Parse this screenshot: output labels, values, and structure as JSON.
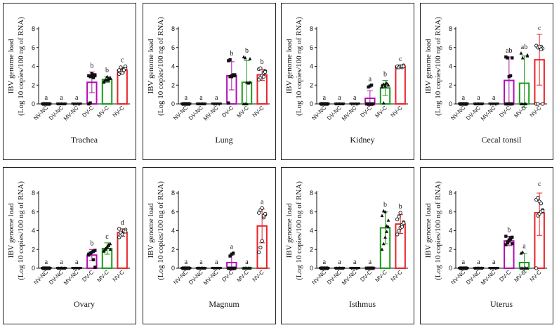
{
  "figure": {
    "ylabel_line1": "IBV genome load",
    "ylabel_line2": "(Log 10 copies/100 ng of RNA)",
    "groups": [
      "NV-NC",
      "DV-NC",
      "MV-NC",
      "DV-C",
      "MV-C",
      "NV-C"
    ],
    "group_colors": [
      "#1a1a1a",
      "#1a1a1a",
      "#1a1a1a",
      "#b10fb4",
      "#1a9b1a",
      "#e8242b"
    ]
  },
  "chart_data": [
    {
      "type": "bar",
      "title": "Trachea",
      "ylim": [
        0,
        8
      ],
      "yticks": [
        0,
        2,
        4,
        6,
        8
      ],
      "categories": [
        "NV-NC",
        "DV-NC",
        "MV-NC",
        "DV-C",
        "MV-C",
        "NV-C"
      ],
      "values": [
        0,
        0,
        0,
        2.3,
        2.6,
        3.6
      ],
      "errors": [
        0,
        0,
        0,
        1.1,
        0.3,
        0.3
      ],
      "labels": [
        "a",
        "a",
        "a",
        "b",
        "b",
        "c"
      ],
      "points": [
        [
          0,
          0,
          0,
          0,
          0,
          0,
          0,
          0,
          0,
          0
        ],
        [
          0,
          0,
          0,
          0,
          0,
          0,
          0,
          0,
          0,
          0
        ],
        [
          0,
          0,
          0,
          0,
          0,
          0,
          0,
          0,
          0,
          0
        ],
        [
          0,
          0.1,
          2.9,
          3.1,
          3.1,
          3.0,
          2.9,
          3.2,
          2.8,
          3.0
        ],
        [
          2.3,
          2.5,
          2.6,
          2.7,
          2.8,
          2.4,
          2.6,
          2.9,
          2.5,
          2.7
        ],
        [
          3.2,
          3.4,
          3.5,
          3.7,
          3.8,
          3.6,
          3.9,
          3.3,
          3.6,
          4.0
        ]
      ]
    },
    {
      "type": "bar",
      "title": "Lung",
      "ylim": [
        0,
        8
      ],
      "yticks": [
        0,
        2,
        4,
        6,
        8
      ],
      "categories": [
        "NV-NC",
        "DV-NC",
        "MV-NC",
        "DV-C",
        "MV-C",
        "NV-C"
      ],
      "values": [
        0,
        0,
        0,
        3.0,
        2.3,
        3.1
      ],
      "errors": [
        0,
        0,
        0,
        1.5,
        2.3,
        0.6
      ],
      "labels": [
        "a",
        "a",
        "a",
        "b",
        "b",
        "b"
      ],
      "points": [
        [
          0,
          0,
          0,
          0,
          0,
          0,
          0,
          0,
          0,
          0
        ],
        [
          0,
          0,
          0,
          0,
          0,
          0,
          0,
          0,
          0,
          0
        ],
        [
          0,
          0,
          0,
          0,
          0,
          0,
          0,
          0,
          0,
          0
        ],
        [
          0.1,
          2.9,
          3.0,
          3.0,
          3.1,
          4.6,
          4.7,
          2.9,
          3.1,
          3.0
        ],
        [
          0,
          0,
          0,
          2.2,
          2.3,
          5.0,
          4.9,
          2.3,
          2.2,
          4.8
        ],
        [
          2.6,
          2.8,
          3.0,
          3.3,
          3.5,
          3.7,
          3.8,
          3.0,
          2.9,
          3.4
        ]
      ]
    },
    {
      "type": "bar",
      "title": "Kidney",
      "ylim": [
        0,
        8
      ],
      "yticks": [
        0,
        2,
        4,
        6,
        8
      ],
      "categories": [
        "NV-NC",
        "DV-NC",
        "MV-NC",
        "DV-C",
        "MV-C",
        "NV-C"
      ],
      "values": [
        0,
        0,
        0,
        0.6,
        1.7,
        4.0
      ],
      "errors": [
        0,
        0,
        0,
        0.8,
        0.8,
        0.1
      ],
      "labels": [
        "a",
        "a",
        "a",
        "a",
        "b",
        "c"
      ],
      "points": [
        [
          0,
          0,
          0,
          0,
          0,
          0,
          0,
          0,
          0,
          0
        ],
        [
          0,
          0,
          0,
          0,
          0,
          0,
          0,
          0,
          0,
          0
        ],
        [
          0,
          0,
          0,
          0,
          0,
          0,
          0,
          0,
          0,
          0
        ],
        [
          0,
          0,
          0,
          0,
          0,
          0,
          1.8,
          1.9,
          2.0,
          0
        ],
        [
          2.0,
          2.1,
          1.9,
          2.2,
          2.0,
          1.8,
          0.1,
          2.1,
          2.2,
          2.0
        ],
        [
          3.9,
          4.0,
          4.0,
          3.9,
          4.1,
          4.0,
          3.9,
          4.0,
          4.0,
          4.0
        ]
      ]
    },
    {
      "type": "bar",
      "title": "Cecal tonsil",
      "ylim": [
        0,
        8
      ],
      "yticks": [
        0,
        2,
        4,
        6,
        8
      ],
      "categories": [
        "NV-NC",
        "DV-NC",
        "MV-NC",
        "DV-C",
        "MV-C",
        "NV-C"
      ],
      "values": [
        0,
        0,
        0,
        2.5,
        2.2,
        4.7
      ],
      "errors": [
        0,
        0,
        0,
        2.5,
        2.9,
        2.7
      ],
      "labels": [
        "a",
        "a",
        "a",
        "ab",
        "ab",
        "c"
      ],
      "points": [
        [
          0,
          0,
          0,
          0,
          0,
          0,
          0,
          0,
          0,
          0
        ],
        [
          0,
          0,
          0,
          0,
          0,
          0,
          0,
          0,
          0,
          0
        ],
        [
          0,
          0,
          0,
          0,
          0,
          0,
          0,
          0,
          0,
          0
        ],
        [
          0,
          0,
          0,
          0,
          4.9,
          5.0,
          4.9,
          2.9,
          3.0,
          0
        ],
        [
          0,
          0,
          0,
          0,
          5.2,
          5.4,
          4.9,
          0,
          0,
          5.1
        ],
        [
          0,
          0,
          6.0,
          6.1,
          5.9,
          6.2,
          6.0,
          6.1,
          5.8,
          0
        ]
      ]
    },
    {
      "type": "bar",
      "title": "Ovary",
      "ylim": [
        0,
        8
      ],
      "yticks": [
        0,
        2,
        4,
        6,
        8
      ],
      "categories": [
        "NV-NC",
        "DV-NC",
        "MV-NC",
        "DV-C",
        "MV-C",
        "NV-C"
      ],
      "values": [
        0,
        0,
        0,
        1.4,
        2.1,
        3.8
      ],
      "errors": [
        0,
        0,
        0,
        0.6,
        0.6,
        0.4
      ],
      "labels": [
        "a",
        "a",
        "a",
        "b",
        "c",
        "d"
      ],
      "points": [
        [
          0,
          0,
          0,
          0,
          0,
          0,
          0,
          0,
          0,
          0
        ],
        [
          0,
          0,
          0,
          0,
          0,
          0,
          0,
          0,
          0,
          0
        ],
        [
          0,
          0,
          0,
          0,
          0,
          0,
          0,
          0,
          0,
          0
        ],
        [
          1.5,
          1.6,
          1.7,
          1.8,
          1.9,
          1.4,
          1.6,
          1.7,
          0.9,
          0.1
        ],
        [
          1.8,
          2.0,
          2.2,
          2.4,
          2.6,
          1.9,
          2.1,
          2.3,
          2.5,
          2.0
        ],
        [
          3.3,
          3.5,
          3.7,
          3.9,
          4.1,
          4.2,
          3.8,
          3.6,
          4.0,
          3.9
        ]
      ]
    },
    {
      "type": "bar",
      "title": "Magnum",
      "ylim": [
        0,
        8
      ],
      "yticks": [
        0,
        2,
        4,
        6,
        8
      ],
      "categories": [
        "NV-NC",
        "DV-NC",
        "MV-NC",
        "DV-C",
        "MV-C",
        "NV-C"
      ],
      "values": [
        0,
        0,
        0,
        0.6,
        0,
        4.5
      ],
      "errors": [
        0,
        0,
        0,
        0.8,
        0,
        1.8
      ],
      "labels": [
        "a",
        "a",
        "a",
        "a",
        "a",
        "a"
      ],
      "points": [
        [
          0,
          0,
          0,
          0,
          0,
          0,
          0,
          0,
          0,
          0
        ],
        [
          0,
          0,
          0,
          0,
          0,
          0,
          0,
          0,
          0,
          0
        ],
        [
          0,
          0,
          0,
          0,
          0,
          0,
          0,
          0,
          0,
          0
        ],
        [
          0,
          0,
          0,
          0,
          0,
          0,
          1.3,
          1.5,
          1.6,
          0
        ],
        [
          0,
          0,
          0,
          0,
          0,
          0,
          0,
          0,
          0,
          0
        ],
        [
          1.7,
          2.2,
          2.9,
          5.4,
          5.7,
          5.9,
          6.2,
          6.4,
          5.6,
          5.8
        ]
      ]
    },
    {
      "type": "bar",
      "title": "Isthmus",
      "ylim": [
        0,
        8
      ],
      "yticks": [
        0,
        2,
        4,
        6,
        8
      ],
      "categories": [
        "NV-NC",
        "DV-NC",
        "MV-NC",
        "DV-C",
        "MV-C",
        "NV-C"
      ],
      "values": [
        0,
        0,
        0,
        0,
        4.3,
        4.7
      ],
      "errors": [
        0,
        0,
        0,
        0,
        1.7,
        1.0
      ],
      "labels": [
        "a",
        "a",
        "a",
        "a",
        "b",
        "b"
      ],
      "points": [
        [
          0,
          0,
          0,
          0,
          0,
          0,
          0,
          0,
          0,
          0
        ],
        [
          0,
          0,
          0,
          0,
          0,
          0,
          0,
          0,
          0,
          0
        ],
        [
          0,
          0,
          0,
          0,
          0,
          0,
          0,
          0,
          0,
          0
        ],
        [
          0,
          0,
          0,
          0,
          0,
          0,
          0,
          0,
          0,
          0
        ],
        [
          2.0,
          2.6,
          3.3,
          4.5,
          5.1,
          5.6,
          6.1,
          6.0,
          3.9,
          4.4
        ],
        [
          3.6,
          4.0,
          4.3,
          4.6,
          4.9,
          5.2,
          5.5,
          5.9,
          4.4,
          4.8
        ]
      ]
    },
    {
      "type": "bar",
      "title": "Uterus",
      "ylim": [
        0,
        8
      ],
      "yticks": [
        0,
        2,
        4,
        6,
        8
      ],
      "categories": [
        "NV-NC",
        "DV-NC",
        "MV-NC",
        "DV-C",
        "MV-C",
        "NV-C"
      ],
      "values": [
        0,
        0,
        0,
        2.9,
        0.6,
        5.9
      ],
      "errors": [
        0,
        0,
        0,
        0.5,
        1.0,
        2.4
      ],
      "labels": [
        "a",
        "a",
        "a",
        "b",
        "a",
        "c"
      ],
      "points": [
        [
          0,
          0,
          0,
          0,
          0,
          0,
          0,
          0,
          0,
          0
        ],
        [
          0,
          0,
          0,
          0,
          0,
          0,
          0,
          0,
          0,
          0
        ],
        [
          0,
          0,
          0,
          0,
          0,
          0,
          0,
          0,
          0,
          0
        ],
        [
          2.5,
          2.7,
          2.9,
          3.1,
          3.3,
          3.4,
          2.8,
          3.0,
          3.2,
          2.6
        ],
        [
          0,
          0,
          0,
          0,
          0,
          1.6,
          1.7,
          0,
          0,
          0
        ],
        [
          0,
          5.6,
          5.8,
          6.0,
          6.2,
          7.3,
          7.5,
          7.1,
          6.9,
          6.1
        ]
      ]
    }
  ]
}
